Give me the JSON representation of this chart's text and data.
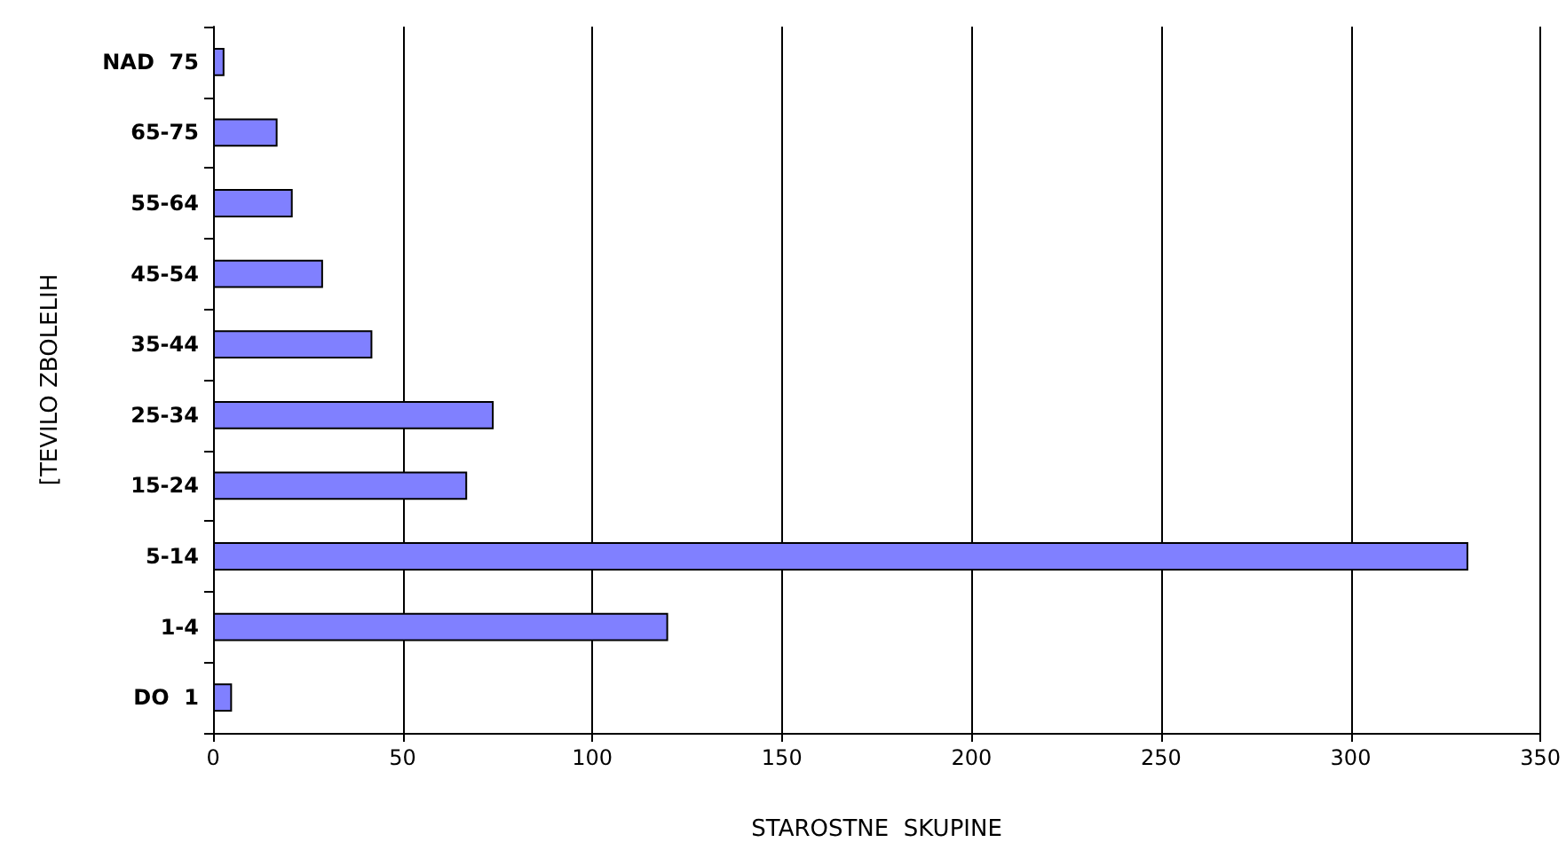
{
  "chart_data": {
    "type": "bar",
    "orientation": "horizontal",
    "xlabel": "STAROSTNE  SKUPINE",
    "ylabel": "[TEVILO ZBOLELIH",
    "categories": [
      "NAD  75",
      "65-75",
      "55-64",
      "45-54",
      "35-44",
      "25-34",
      "15-24",
      "5-14",
      "1-4",
      "DO  1"
    ],
    "values": [
      3,
      17,
      21,
      29,
      42,
      74,
      67,
      331,
      120,
      5
    ],
    "color": "#8080ff",
    "xlim": [
      0,
      350
    ],
    "xticks": [
      0,
      50,
      100,
      150,
      200,
      250,
      300,
      350
    ],
    "grid": "x"
  }
}
